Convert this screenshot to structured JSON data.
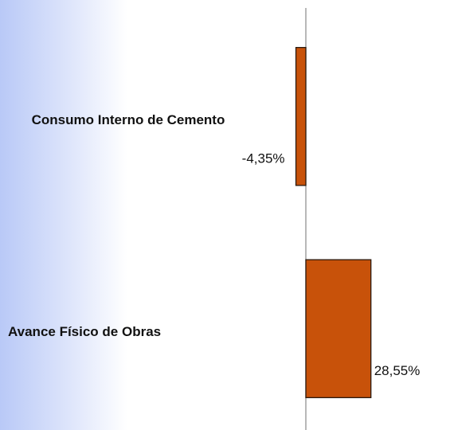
{
  "chart_data": {
    "type": "barh",
    "categories": [
      "Consumo Interno de Cemento",
      "Avance Físico de Obras"
    ],
    "values": [
      -4.35,
      28.55
    ],
    "value_labels": [
      "-4,35%",
      "28,55%"
    ],
    "color": "#c8520a",
    "xlim": [
      -80,
      40
    ]
  }
}
